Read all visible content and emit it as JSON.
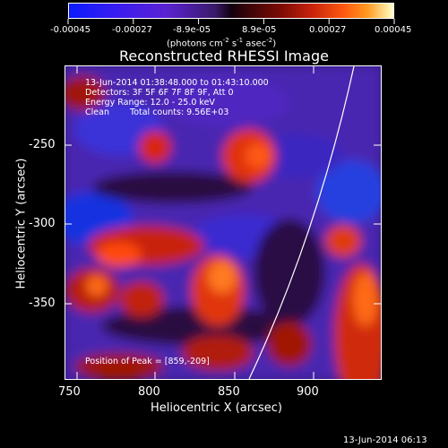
{
  "colorbar": {
    "ticks": [
      "-0.00045",
      "-0.00027",
      "-8.9e-05",
      "8.9e-05",
      "0.00027",
      "0.00045"
    ],
    "units_main": "(photons cm",
    "units_sup1": "-2",
    "units_mid": " s",
    "units_sup2": "-1",
    "units_mid2": " asec",
    "units_sup3": "-2",
    "units_end": ")"
  },
  "title": "Reconstructed RHESSI Image",
  "info": {
    "time_range": "13-Jun-2014 01:38:48.000 to 01:43:10.000",
    "detectors": "Detectors: 3F 5F 6F 7F 8F 9F, Att 0",
    "energy": "Energy Range: 12.0 - 25.0 keV",
    "method": "Clean",
    "counts": "Total counts: 9.56E+03",
    "peak": "Position of Peak = [859,-209]"
  },
  "axes": {
    "xlabel": "Heliocentric X (arcsec)",
    "ylabel": "Heliocentric Y (arcsec)",
    "xticks": [
      "750",
      "800",
      "850",
      "900"
    ],
    "yticks": [
      "-250",
      "-300",
      "-350"
    ]
  },
  "footer": {
    "timestamp": "13-Jun-2014 06:13"
  },
  "colors": {
    "background": "#000000",
    "limb_line": "#ffffff",
    "negative": "#3a1cf0",
    "positive": "#ff5a10"
  }
}
